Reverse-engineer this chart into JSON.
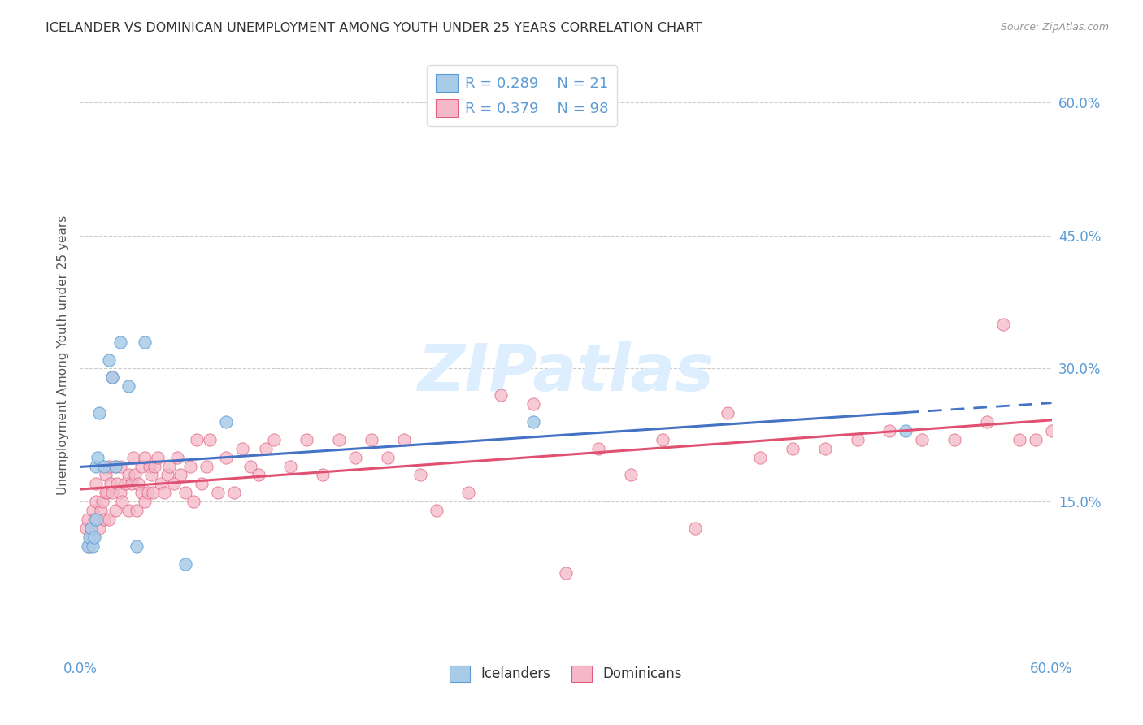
{
  "title": "ICELANDER VS DOMINICAN UNEMPLOYMENT AMONG YOUTH UNDER 25 YEARS CORRELATION CHART",
  "source": "Source: ZipAtlas.com",
  "ylabel": "Unemployment Among Youth under 25 years",
  "xlim": [
    0.0,
    0.6
  ],
  "ylim": [
    -0.02,
    0.65
  ],
  "ytick_vals": [
    0.15,
    0.3,
    0.45,
    0.6
  ],
  "ytick_labels": [
    "15.0%",
    "30.0%",
    "45.0%",
    "60.0%"
  ],
  "icelanders_color": "#a8cce8",
  "dominicans_color": "#f4b8c8",
  "icelanders_edge_color": "#5b9bd5",
  "dominicans_edge_color": "#e06080",
  "icelanders_line_color": "#4472c4",
  "dominicans_line_color": "#e05070",
  "background_color": "#ffffff",
  "watermark": "ZIPatlas",
  "legend_R_icelanders": "R = 0.289",
  "legend_N_icelanders": "N = 21",
  "legend_R_dominicans": "R = 0.379",
  "legend_N_dominicans": "N = 98",
  "icelanders_x": [
    0.005,
    0.006,
    0.007,
    0.008,
    0.009,
    0.01,
    0.01,
    0.011,
    0.012,
    0.015,
    0.018,
    0.02,
    0.022,
    0.025,
    0.03,
    0.035,
    0.04,
    0.065,
    0.09,
    0.28,
    0.51
  ],
  "icelanders_y": [
    0.1,
    0.11,
    0.12,
    0.1,
    0.11,
    0.13,
    0.19,
    0.2,
    0.25,
    0.19,
    0.31,
    0.29,
    0.19,
    0.33,
    0.28,
    0.1,
    0.33,
    0.08,
    0.24,
    0.24,
    0.23
  ],
  "dominicans_x": [
    0.004,
    0.005,
    0.006,
    0.007,
    0.008,
    0.008,
    0.009,
    0.01,
    0.01,
    0.012,
    0.013,
    0.014,
    0.015,
    0.016,
    0.016,
    0.017,
    0.018,
    0.018,
    0.019,
    0.02,
    0.02,
    0.022,
    0.022,
    0.023,
    0.025,
    0.025,
    0.026,
    0.028,
    0.03,
    0.03,
    0.032,
    0.033,
    0.034,
    0.035,
    0.036,
    0.038,
    0.038,
    0.04,
    0.04,
    0.042,
    0.043,
    0.044,
    0.045,
    0.046,
    0.048,
    0.05,
    0.052,
    0.054,
    0.055,
    0.058,
    0.06,
    0.062,
    0.065,
    0.068,
    0.07,
    0.072,
    0.075,
    0.078,
    0.08,
    0.085,
    0.09,
    0.095,
    0.1,
    0.105,
    0.11,
    0.115,
    0.12,
    0.13,
    0.14,
    0.15,
    0.16,
    0.17,
    0.18,
    0.19,
    0.2,
    0.21,
    0.22,
    0.24,
    0.26,
    0.28,
    0.3,
    0.32,
    0.34,
    0.36,
    0.38,
    0.4,
    0.42,
    0.44,
    0.46,
    0.48,
    0.5,
    0.52,
    0.54,
    0.56,
    0.57,
    0.58,
    0.59,
    0.6
  ],
  "dominicans_y": [
    0.12,
    0.13,
    0.1,
    0.12,
    0.11,
    0.14,
    0.13,
    0.15,
    0.17,
    0.12,
    0.14,
    0.15,
    0.13,
    0.16,
    0.18,
    0.16,
    0.13,
    0.19,
    0.17,
    0.16,
    0.29,
    0.14,
    0.19,
    0.17,
    0.16,
    0.19,
    0.15,
    0.17,
    0.14,
    0.18,
    0.17,
    0.2,
    0.18,
    0.14,
    0.17,
    0.16,
    0.19,
    0.15,
    0.2,
    0.16,
    0.19,
    0.18,
    0.16,
    0.19,
    0.2,
    0.17,
    0.16,
    0.18,
    0.19,
    0.17,
    0.2,
    0.18,
    0.16,
    0.19,
    0.15,
    0.22,
    0.17,
    0.19,
    0.22,
    0.16,
    0.2,
    0.16,
    0.21,
    0.19,
    0.18,
    0.21,
    0.22,
    0.19,
    0.22,
    0.18,
    0.22,
    0.2,
    0.22,
    0.2,
    0.22,
    0.18,
    0.14,
    0.16,
    0.27,
    0.26,
    0.07,
    0.21,
    0.18,
    0.22,
    0.12,
    0.25,
    0.2,
    0.21,
    0.21,
    0.22,
    0.23,
    0.22,
    0.22,
    0.24,
    0.35,
    0.22,
    0.22,
    0.23
  ]
}
